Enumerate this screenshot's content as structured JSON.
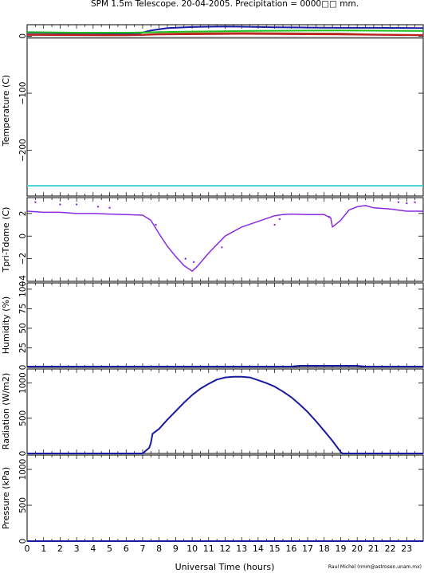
{
  "title": "SPM 1.5m Telescope. 20-04-2005. Precipitation = 0000□□ mm.",
  "credit": "Raul Michel (rmm@astrosen.unam.mx)",
  "xlabel": "Universal Time (hours)",
  "x_ticks": [
    "0",
    "1",
    "2",
    "3",
    "4",
    "5",
    "6",
    "7",
    "8",
    "9",
    "10",
    "11",
    "12",
    "13",
    "14",
    "15",
    "16",
    "17",
    "18",
    "19",
    "20",
    "21",
    "22",
    "23"
  ],
  "chart_data": [
    {
      "type": "line",
      "ylabel": "Temperature (C)",
      "xlim": [
        0,
        24
      ],
      "ylim": [
        -280,
        20
      ],
      "yticks": [
        0,
        -100,
        -200
      ],
      "ytick_labels": [
        "0",
        "−100",
        "−200"
      ],
      "series": [
        {
          "color": "#1a1aa0",
          "points": [
            [
              0,
              6
            ],
            [
              3,
              5
            ],
            [
              6,
              4.5
            ],
            [
              6.8,
              5
            ],
            [
              7.5,
              10
            ],
            [
              8.5,
              14
            ],
            [
              10,
              16
            ],
            [
              12,
              17
            ],
            [
              13,
              16.5
            ],
            [
              15,
              15.5
            ],
            [
              17,
              15
            ],
            [
              19,
              14.5
            ],
            [
              21,
              14.5
            ],
            [
              24,
              14
            ]
          ]
        },
        {
          "color": "#20c020",
          "points": [
            [
              0,
              7
            ],
            [
              3,
              6
            ],
            [
              6,
              6
            ],
            [
              7,
              6.5
            ],
            [
              8,
              7
            ],
            [
              10,
              8
            ],
            [
              13,
              9
            ],
            [
              16,
              9.5
            ],
            [
              19,
              10
            ],
            [
              21,
              9.5
            ],
            [
              24,
              9
            ]
          ]
        },
        {
          "color": "#a05020",
          "points": [
            [
              0,
              3
            ],
            [
              3,
              2.5
            ],
            [
              6,
              2
            ],
            [
              7,
              2.5
            ],
            [
              8,
              4
            ],
            [
              10,
              5
            ],
            [
              13,
              5.5
            ],
            [
              16,
              5
            ],
            [
              19,
              4.5
            ],
            [
              21,
              3
            ],
            [
              24,
              2
            ]
          ]
        },
        {
          "color": "#c02020",
          "points": [
            [
              0,
              2
            ],
            [
              6,
              1.5
            ],
            [
              7,
              2
            ],
            [
              8,
              3
            ],
            [
              13,
              4
            ],
            [
              19,
              3
            ],
            [
              24,
              1.5
            ]
          ]
        },
        {
          "color": "#606060",
          "points": [
            [
              0,
              -3
            ],
            [
              24,
              -3
            ]
          ]
        },
        {
          "color": "#40d0d0",
          "points": [
            [
              0,
              -262
            ],
            [
              24,
              -262
            ]
          ]
        }
      ]
    },
    {
      "type": "scatter",
      "ylabel": "Tpri-Tdome (C)",
      "xlim": [
        0,
        24
      ],
      "ylim": [
        -4,
        3.4
      ],
      "yticks": [
        2,
        0,
        -2,
        -4
      ],
      "ytick_labels": [
        "2",
        "0",
        "−2",
        "−4"
      ],
      "series": [
        {
          "color": "#8a2be2",
          "points": [
            [
              0,
              2.2
            ],
            [
              1,
              2.1
            ],
            [
              2,
              2.1
            ],
            [
              3,
              2.0
            ],
            [
              4,
              2.0
            ],
            [
              5,
              1.95
            ],
            [
              6,
              1.9
            ],
            [
              7,
              1.85
            ],
            [
              7.5,
              1.4
            ],
            [
              8,
              0.2
            ],
            [
              8.5,
              -0.9
            ],
            [
              9,
              -1.8
            ],
            [
              9.5,
              -2.6
            ],
            [
              10,
              -3.1
            ],
            [
              10.3,
              -2.7
            ],
            [
              11,
              -1.5
            ],
            [
              12,
              0.0
            ],
            [
              13,
              0.8
            ],
            [
              14,
              1.3
            ],
            [
              15,
              1.8
            ],
            [
              15.5,
              1.9
            ],
            [
              16,
              1.95
            ],
            [
              17,
              1.9
            ],
            [
              18,
              1.9
            ],
            [
              18.4,
              1.6
            ],
            [
              18.5,
              0.8
            ],
            [
              19,
              1.4
            ],
            [
              19.5,
              2.3
            ],
            [
              20,
              2.6
            ],
            [
              20.5,
              2.7
            ],
            [
              21,
              2.5
            ],
            [
              22,
              2.4
            ],
            [
              23,
              2.2
            ],
            [
              24,
              2.2
            ]
          ]
        }
      ],
      "outliers": [
        [
          0.5,
          3.0
        ],
        [
          2,
          2.8
        ],
        [
          3,
          2.8
        ],
        [
          4.3,
          2.6
        ],
        [
          5,
          2.5
        ],
        [
          7.8,
          1.0
        ],
        [
          9.6,
          -2.0
        ],
        [
          10.1,
          -2.3
        ],
        [
          11.8,
          -1.0
        ],
        [
          15,
          1.0
        ],
        [
          15.3,
          1.5
        ],
        [
          18.3,
          1.7
        ],
        [
          22.5,
          3.0
        ],
        [
          23,
          2.9
        ],
        [
          23.5,
          3.0
        ]
      ]
    },
    {
      "type": "line",
      "ylabel": "Humidity (%)",
      "xlim": [
        0,
        24
      ],
      "ylim": [
        0,
        108
      ],
      "yticks": [
        0,
        25,
        50,
        75,
        100
      ],
      "ytick_labels": [
        "0",
        "25",
        "50",
        "75",
        "100"
      ],
      "series": [
        {
          "color": "#1a1aa0",
          "points": [
            [
              0,
              1
            ],
            [
              16,
              1
            ],
            [
              16.5,
              2
            ],
            [
              20,
              2
            ],
            [
              20.5,
              1
            ],
            [
              24,
              1
            ]
          ]
        }
      ]
    },
    {
      "type": "line",
      "ylabel": "Radiation (W/m2)",
      "xlim": [
        0,
        24
      ],
      "ylim": [
        0,
        1200
      ],
      "yticks": [
        0,
        500,
        1000
      ],
      "ytick_labels": [
        "0",
        "500",
        "1000"
      ],
      "series": [
        {
          "color": "#1a1aa0",
          "points": [
            [
              0,
              0
            ],
            [
              7,
              0
            ],
            [
              7.4,
              80
            ],
            [
              7.5,
              150
            ],
            [
              7.6,
              280
            ],
            [
              8,
              350
            ],
            [
              8.5,
              480
            ],
            [
              9,
              600
            ],
            [
              9.5,
              720
            ],
            [
              10,
              830
            ],
            [
              10.5,
              920
            ],
            [
              11,
              990
            ],
            [
              11.5,
              1050
            ],
            [
              12,
              1080
            ],
            [
              12.5,
              1090
            ],
            [
              13,
              1090
            ],
            [
              13.5,
              1080
            ],
            [
              14,
              1040
            ],
            [
              14.5,
              1000
            ],
            [
              15,
              950
            ],
            [
              15.5,
              880
            ],
            [
              16,
              800
            ],
            [
              16.5,
              700
            ],
            [
              17,
              590
            ],
            [
              17.5,
              460
            ],
            [
              18,
              320
            ],
            [
              18.5,
              180
            ],
            [
              19,
              20
            ],
            [
              19.1,
              0
            ],
            [
              24,
              0
            ]
          ]
        }
      ]
    },
    {
      "type": "line",
      "ylabel": "Pressure (kPa)",
      "xlim": [
        0,
        24
      ],
      "ylim": [
        0,
        1200
      ],
      "yticks": [
        0,
        500,
        1000
      ],
      "ytick_labels": [
        "0",
        "500",
        "1000"
      ],
      "series": [
        {
          "color": "#1a1aa0",
          "points": [
            [
              0,
              0
            ],
            [
              24,
              0
            ]
          ]
        }
      ]
    }
  ]
}
